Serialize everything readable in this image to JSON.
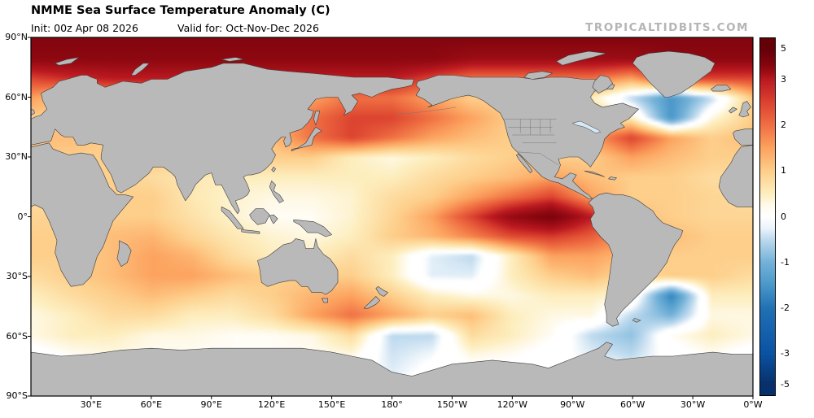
{
  "header": {
    "title": "NMME Sea Surface Temperature Anomaly (C)",
    "init": "Init: 00z Apr 08 2026",
    "valid": "Valid for: Oct-Nov-Dec 2026",
    "watermark": "TROPICALTIDBITS.COM"
  },
  "colors": {
    "background": "#ffffff",
    "land": "#b9b9b9",
    "land_border": "#3d3d3d",
    "state_border": "#777777",
    "lake_fill": "#d6e8f5",
    "frame": "#000000",
    "watermark": "#b5b5b5"
  },
  "axes": {
    "lat_ticks": [
      {
        "label": "90°N",
        "lat": 90
      },
      {
        "label": "60°N",
        "lat": 60
      },
      {
        "label": "30°N",
        "lat": 30
      },
      {
        "label": "0°",
        "lat": 0
      },
      {
        "label": "30°S",
        "lat": -30
      },
      {
        "label": "60°S",
        "lat": -60
      },
      {
        "label": "90°S",
        "lat": -90
      }
    ],
    "lon_ticks": [
      {
        "label": "30°E",
        "lon": 30
      },
      {
        "label": "60°E",
        "lon": 60
      },
      {
        "label": "90°E",
        "lon": 90
      },
      {
        "label": "120°E",
        "lon": 120
      },
      {
        "label": "150°E",
        "lon": 150
      },
      {
        "label": "180°",
        "lon": 180
      },
      {
        "label": "150°W",
        "lon": 210
      },
      {
        "label": "120°W",
        "lon": 240
      },
      {
        "label": "90°W",
        "lon": 270
      },
      {
        "label": "60°W",
        "lon": 300
      },
      {
        "label": "30°W",
        "lon": 330
      },
      {
        "label": "0°W",
        "lon": 360
      }
    ]
  },
  "colorbar": {
    "ticks": [
      {
        "label": "5",
        "value": 5
      },
      {
        "label": "3",
        "value": 3
      },
      {
        "label": "2",
        "value": 2
      },
      {
        "label": "1",
        "value": 1
      },
      {
        "label": "0",
        "value": 0
      },
      {
        "label": "-1",
        "value": -1
      },
      {
        "label": "-2",
        "value": -2
      },
      {
        "label": "-3",
        "value": -3
      },
      {
        "label": "-5",
        "value": -5
      }
    ]
  },
  "chart_data": {
    "type": "heatmap",
    "title": "NMME Sea Surface Temperature Anomaly (C)",
    "init": "00z Apr 08 2026",
    "valid_for": "Oct-Nov-Dec 2026",
    "units": "C",
    "lon_range": [
      0,
      360
    ],
    "lat_range": [
      -90,
      90
    ],
    "colorbar_tick_values": [
      5,
      3,
      2,
      1,
      0,
      -1,
      -2,
      -3,
      -5
    ],
    "colorbar_range": [
      -5,
      5
    ],
    "grid_lons": [
      0,
      20,
      40,
      60,
      80,
      100,
      120,
      140,
      160,
      180,
      200,
      220,
      240,
      260,
      280,
      300,
      320,
      340,
      360
    ],
    "grid_lats": [
      90,
      80,
      70,
      60,
      50,
      40,
      30,
      20,
      10,
      0,
      -10,
      -20,
      -30,
      -40,
      -50,
      -60,
      -70,
      -80,
      -90
    ],
    "values": [
      [
        4,
        4,
        4,
        4,
        4,
        4,
        4,
        4,
        4,
        4,
        4,
        4,
        4,
        4,
        4,
        4,
        4,
        4,
        4
      ],
      [
        3.8,
        3.8,
        3.8,
        3.8,
        3.8,
        3.8,
        3.8,
        3.8,
        3.8,
        3.8,
        3.8,
        3.5,
        3.5,
        3.5,
        3.5,
        3.5,
        3.8,
        3.8,
        3.8
      ],
      [
        2.5,
        2.8,
        3,
        3,
        3,
        3,
        3,
        3,
        3,
        3,
        2.5,
        2,
        2,
        2,
        2,
        1.5,
        2.5,
        2.5,
        2.5
      ],
      [
        1.5,
        1,
        1.5,
        1.5,
        1.5,
        1.5,
        1.5,
        1.5,
        2,
        2,
        1.5,
        1,
        1,
        0.5,
        0.5,
        -0.5,
        -1.5,
        -0.5,
        1
      ],
      [
        1,
        1,
        1.5,
        1.5,
        1.5,
        1.5,
        1.5,
        2,
        2.5,
        2.5,
        2,
        1.5,
        1,
        0.5,
        1,
        0.5,
        -1.5,
        0.3,
        1
      ],
      [
        1.2,
        1.2,
        1,
        1,
        1,
        1,
        1.2,
        2,
        2.5,
        2,
        1.5,
        1.2,
        1,
        0.8,
        1.5,
        2.5,
        1.5,
        1,
        1.2
      ],
      [
        1,
        1,
        1,
        1,
        1,
        1,
        1,
        1,
        0.5,
        0.3,
        0.5,
        0.8,
        1,
        1,
        1,
        1.5,
        1.2,
        1,
        1
      ],
      [
        0.8,
        0.8,
        1,
        0.8,
        0.6,
        0.5,
        0.5,
        0.5,
        0.5,
        0.5,
        0.8,
        1,
        1.2,
        1.5,
        1.2,
        1,
        1,
        0.8,
        0.8
      ],
      [
        0.8,
        0.8,
        1,
        1,
        0.6,
        0.4,
        0.3,
        0.3,
        0.4,
        0.8,
        1,
        1.5,
        2,
        2.5,
        1.5,
        1,
        1,
        0.9,
        0.8
      ],
      [
        0.9,
        1,
        1,
        1,
        0.7,
        0.4,
        0.2,
        0.2,
        0.4,
        0.9,
        1.5,
        2.5,
        3.6,
        4.2,
        3,
        1.2,
        1,
        0.9,
        0.9
      ],
      [
        1,
        1,
        1.2,
        1.3,
        0.9,
        0.6,
        0.4,
        0.3,
        0.5,
        1,
        1.3,
        1.8,
        2.4,
        2.6,
        2.2,
        1.5,
        1.2,
        1,
        1
      ],
      [
        1,
        1,
        1.2,
        1.5,
        1.3,
        0.8,
        0.5,
        0.5,
        0.8,
        0.5,
        -0.3,
        -0.5,
        0.5,
        1.5,
        1.5,
        1.2,
        1,
        1,
        1
      ],
      [
        0.8,
        1,
        1.2,
        1.5,
        1.5,
        1.2,
        1,
        1,
        1,
        0.5,
        -0.3,
        -0.3,
        0.5,
        1,
        1.2,
        0.8,
        1,
        1,
        0.8
      ],
      [
        0.5,
        0.8,
        1,
        1.2,
        1,
        0.8,
        1,
        1.3,
        1.5,
        1,
        0.5,
        0.3,
        0.3,
        0.5,
        0.5,
        0.3,
        -1.8,
        0.5,
        0.5
      ],
      [
        0.3,
        0.5,
        0.8,
        0.8,
        0.5,
        0.5,
        0.8,
        1.5,
        2,
        1.5,
        1,
        1.2,
        0.5,
        0.3,
        0.3,
        -0.5,
        -1,
        0.3,
        0.3
      ],
      [
        0.3,
        0.5,
        0.5,
        0.3,
        0.3,
        0.2,
        0.2,
        0.3,
        0.8,
        -0.5,
        -0.5,
        0.8,
        0.5,
        0.2,
        -0.5,
        -0.8,
        0.2,
        0.5,
        0.3
      ],
      [
        0,
        0.2,
        0.3,
        0.2,
        0.2,
        0.2,
        0.2,
        0.2,
        0.3,
        -0.4,
        -0.2,
        0.3,
        0.2,
        0,
        -0.3,
        -0.5,
        0,
        0.2,
        0
      ],
      [
        0,
        0,
        0,
        0,
        0,
        0,
        0,
        0,
        0,
        -0.3,
        0,
        0,
        0,
        0,
        0,
        0,
        0,
        0,
        0
      ],
      [
        0,
        0,
        0,
        0,
        0,
        0,
        0,
        0,
        0,
        0,
        0,
        0,
        0,
        0,
        0,
        0,
        0,
        0,
        0
      ]
    ],
    "colormap_stops": [
      [
        -5,
        "#08306b"
      ],
      [
        -3,
        "#0a52a3"
      ],
      [
        -2,
        "#2171b5"
      ],
      [
        -1.5,
        "#4a97c9"
      ],
      [
        -1,
        "#74b2d8"
      ],
      [
        -0.5,
        "#bcd9ee"
      ],
      [
        -0.15,
        "#ffffff"
      ],
      [
        0.15,
        "#ffffff"
      ],
      [
        0.5,
        "#fdeebe"
      ],
      [
        1,
        "#fdcf8b"
      ],
      [
        1.5,
        "#fca35f"
      ],
      [
        2,
        "#f07043"
      ],
      [
        2.5,
        "#dc4430"
      ],
      [
        3,
        "#bc1a21"
      ],
      [
        3.5,
        "#9c0d15"
      ],
      [
        4,
        "#83050e"
      ],
      [
        5,
        "#640008"
      ]
    ]
  }
}
